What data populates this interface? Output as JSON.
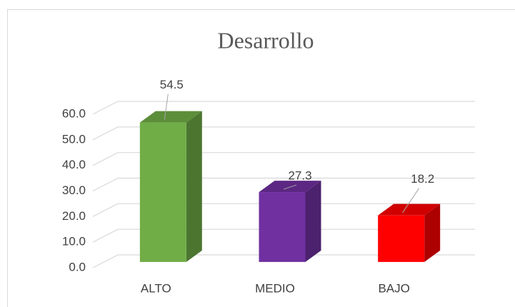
{
  "chart_data": {
    "type": "bar3d",
    "title": "Desarrollo",
    "categories": [
      "ALTO",
      "MEDIO",
      "BAJO"
    ],
    "values": [
      54.5,
      27.3,
      18.2
    ],
    "colors": [
      "#70ad47",
      "#7030a0",
      "#ff0000"
    ],
    "ylim": [
      0,
      60
    ],
    "yticks": [
      {
        "value": 0,
        "label": "0.0"
      },
      {
        "value": 10,
        "label": "10.0"
      },
      {
        "value": 20,
        "label": "20.0"
      },
      {
        "value": 30,
        "label": "30.0"
      },
      {
        "value": 40,
        "label": "40.0"
      },
      {
        "value": 50,
        "label": "50.0"
      },
      {
        "value": 60,
        "label": "60.0"
      }
    ],
    "grid": true
  }
}
